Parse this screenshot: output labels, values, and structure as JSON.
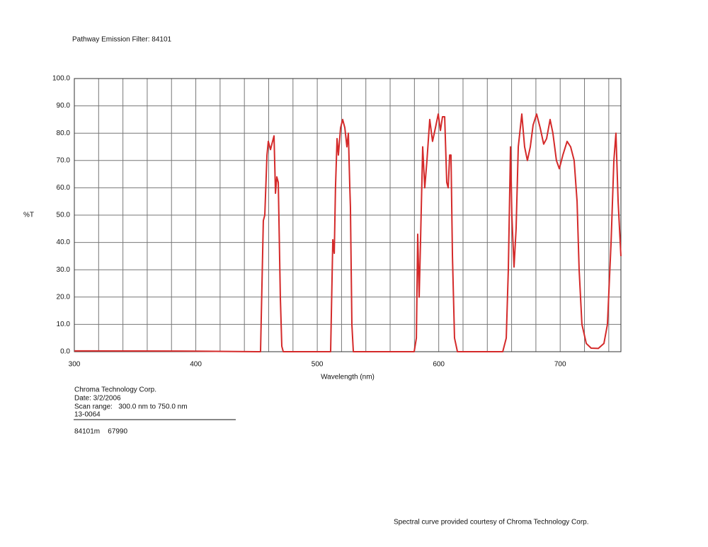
{
  "chart_data": {
    "type": "line",
    "title": "Pathway Emission Filter: 84101",
    "y_label": "%T",
    "x_label": "Wavelength (nm)",
    "notes": [
      "Chroma Technology Corp.",
      "Date: 3/2/2006",
      "Scan range:   300.0 nm to 750.0 nm",
      "13-0064"
    ],
    "id_line": "84101m    67990",
    "credit": "Spectral curve provided courtesy of Chroma Technology Corp.",
    "xlim": [
      300,
      750
    ],
    "ylim": [
      0,
      100
    ],
    "xticks": [
      300,
      400,
      500,
      600,
      700
    ],
    "xgrid": [
      320,
      340,
      360,
      380,
      420,
      440,
      460,
      480,
      520,
      540,
      560,
      580,
      620,
      640,
      660,
      680,
      720,
      740
    ],
    "yticks": [
      {
        "value": 0,
        "label": "0.0"
      },
      {
        "value": 10,
        "label": "10.0"
      },
      {
        "value": 20,
        "label": "20.0"
      },
      {
        "value": 30,
        "label": "30.0"
      },
      {
        "value": 40,
        "label": "40.0"
      },
      {
        "value": 50,
        "label": "50.0"
      },
      {
        "value": 60,
        "label": "60.0"
      },
      {
        "value": 70,
        "label": "70.0"
      },
      {
        "value": 80,
        "label": "80.0"
      },
      {
        "value": 90,
        "label": "90.0"
      },
      {
        "value": 100,
        "label": "100.0"
      }
    ],
    "grid": true,
    "x": [
      300,
      400,
      450,
      453.3,
      455.6,
      456.8,
      458.6,
      459.7,
      461.5,
      463.2,
      464.4,
      465.6,
      466.7,
      467.9,
      469.6,
      470.8,
      472,
      511,
      512.8,
      514,
      515,
      516.3,
      517.4,
      519.2,
      520.9,
      522.7,
      524.4,
      525.6,
      526.8,
      527.3,
      528.5,
      529.7,
      579.8,
      581.6,
      582.7,
      583.9,
      585,
      586.8,
      588.5,
      590.3,
      592.6,
      594.9,
      597.3,
      599.6,
      601.4,
      603.1,
      604.9,
      606.6,
      607.8,
      609,
      610.1,
      611.3,
      613,
      615.4,
      652.7,
      655.6,
      657.3,
      659.1,
      660.2,
      662,
      663.7,
      665.5,
      668.4,
      670.7,
      673,
      675.4,
      677.7,
      680.6,
      683.5,
      686.4,
      688.8,
      691.7,
      694,
      696.9,
      699.3,
      702.2,
      705.7,
      708.6,
      711.5,
      713.9,
      715.6,
      717.9,
      721.5,
      725.5,
      731.4,
      736,
      738.9,
      741.9,
      744.2,
      745.9,
      747.7,
      750
    ],
    "series": [
      {
        "name": "%T",
        "color": "#d42a2a",
        "values": [
          0.3,
          0.2,
          0,
          0,
          48,
          50,
          72,
          77,
          74,
          77,
          79,
          58,
          64,
          62,
          20,
          2,
          0,
          0,
          41,
          36,
          60,
          78,
          72,
          82,
          85,
          82,
          75,
          80,
          60,
          53,
          10,
          0,
          0,
          5,
          43,
          20,
          40,
          75,
          60,
          70,
          85,
          77,
          82,
          87,
          81,
          86,
          86,
          62,
          60,
          72,
          72,
          35,
          5,
          0,
          0,
          5,
          30,
          75,
          50,
          31,
          45,
          75,
          87,
          75,
          70,
          75,
          83,
          87,
          82,
          76,
          78,
          85,
          80,
          70,
          67,
          72,
          77,
          75,
          70,
          55,
          30,
          10,
          3,
          1.3,
          1.2,
          3,
          10,
          40,
          70,
          80,
          55,
          35
        ]
      }
    ]
  }
}
